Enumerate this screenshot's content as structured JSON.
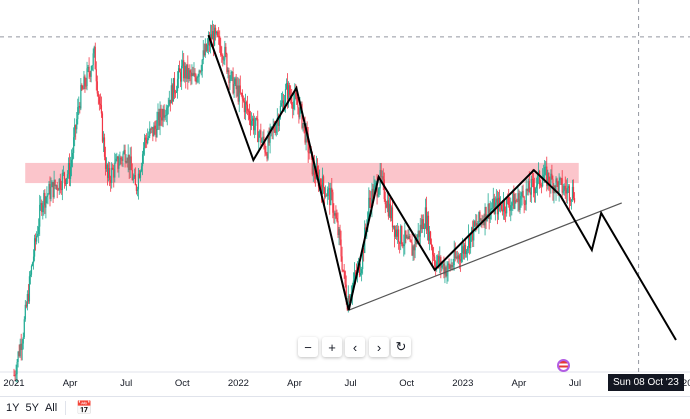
{
  "chart_data": {
    "type": "candlestick",
    "title": "",
    "xlabel": "",
    "ylabel": "",
    "price_scale": "unlabeled (relative units 0-100)",
    "x_unit": "months since Jan 2021",
    "x_ticks": [
      {
        "m": 0,
        "label": "2021"
      },
      {
        "m": 3,
        "label": "Apr"
      },
      {
        "m": 6,
        "label": "Jul"
      },
      {
        "m": 9,
        "label": "Oct"
      },
      {
        "m": 12,
        "label": "2022"
      },
      {
        "m": 15,
        "label": "Apr"
      },
      {
        "m": 18,
        "label": "Jul"
      },
      {
        "m": 21,
        "label": "Oct"
      },
      {
        "m": 24,
        "label": "2023"
      },
      {
        "m": 27,
        "label": "Apr"
      },
      {
        "m": 30,
        "label": "Jul"
      },
      {
        "m": 36,
        "label": "20"
      }
    ],
    "price_path": [
      [
        0,
        1.4
      ],
      [
        0.5,
        13.9
      ],
      [
        1,
        33.3
      ],
      [
        1.5,
        50
      ],
      [
        2,
        52.8
      ],
      [
        3,
        58.3
      ],
      [
        3.5,
        77.8
      ],
      [
        4.3,
        90.3
      ],
      [
        4.6,
        75
      ],
      [
        5,
        55.6
      ],
      [
        6,
        63.9
      ],
      [
        6.5,
        52.8
      ],
      [
        7,
        66.7
      ],
      [
        7.5,
        69.4
      ],
      [
        8.5,
        80.6
      ],
      [
        9,
        86.1
      ],
      [
        9.6,
        83.3
      ],
      [
        10.3,
        91.7
      ],
      [
        10.6,
        95.8
      ],
      [
        11.2,
        91.7
      ],
      [
        11.6,
        83.3
      ],
      [
        12.2,
        77.8
      ],
      [
        13,
        69.4
      ],
      [
        13.5,
        63.9
      ],
      [
        14.6,
        80.6
      ],
      [
        15.3,
        75
      ],
      [
        16,
        58.3
      ],
      [
        17,
        50
      ],
      [
        17.4,
        38.9
      ],
      [
        17.8,
        22.2
      ],
      [
        18.2,
        27.8
      ],
      [
        18.6,
        33.3
      ],
      [
        19,
        50
      ],
      [
        19.6,
        55.6
      ],
      [
        20.4,
        41.7
      ],
      [
        21.3,
        36.1
      ],
      [
        22,
        45.8
      ],
      [
        22.5,
        33.3
      ],
      [
        23.2,
        30.6
      ],
      [
        24,
        36.1
      ],
      [
        24.6,
        41.7
      ],
      [
        25.3,
        47.2
      ],
      [
        26,
        48.6
      ],
      [
        27,
        50
      ],
      [
        27.6,
        52.8
      ],
      [
        28.3,
        56.9
      ],
      [
        29,
        54.2
      ],
      [
        29.5,
        52.8
      ],
      [
        30,
        52.2
      ]
    ],
    "zigzag": [
      [
        10.4,
        95.8
      ],
      [
        12.8,
        61.1
      ],
      [
        15.1,
        81.1
      ],
      [
        17.9,
        19.4
      ],
      [
        19.5,
        56.4
      ],
      [
        22.5,
        30.6
      ],
      [
        27.8,
        58.3
      ],
      [
        29.2,
        51.4
      ],
      [
        30.9,
        36.1
      ],
      [
        31.4,
        46.4
      ],
      [
        35.4,
        11.1
      ]
    ],
    "trendline": [
      [
        17.9,
        19.4
      ],
      [
        32.5,
        49.2
      ]
    ],
    "resistance_zone": {
      "from": 0.6,
      "to": 30.2,
      "low": 54.7,
      "high": 60.3
    },
    "horizontal_level": 95.3,
    "crosshair_month": 33.4,
    "crosshair_label": "Sun 08 Oct '23",
    "colors": {
      "up": "#22ab94",
      "down": "#f23645",
      "zone": "#fbc5cb",
      "line": "#000000",
      "trend": "#555555"
    }
  },
  "controls": {
    "zoom_out": "−",
    "zoom_in": "+",
    "scroll_left": "‹",
    "scroll_right": "›",
    "reset": "↻"
  },
  "ranges": [
    "1Y",
    "5Y",
    "All"
  ]
}
